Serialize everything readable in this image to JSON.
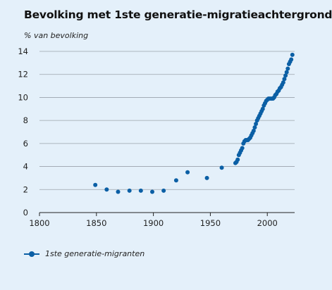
{
  "chart_data": {
    "type": "scatter",
    "title": "Bevolking met 1ste generatie-migratieachtergrond",
    "ylabel": "% van bevolking",
    "xlabel": "",
    "xlim": [
      1800,
      2024
    ],
    "ylim": [
      0,
      14
    ],
    "xticks": [
      1800,
      1850,
      1900,
      1950,
      2000
    ],
    "yticks": [
      0,
      2,
      4,
      6,
      8,
      10,
      12,
      14
    ],
    "grid": "horizontal",
    "legend_position": "bottom-left",
    "series": [
      {
        "name": "1ste generatie-migranten",
        "color": "#0b5fa5",
        "points": [
          [
            1849,
            2.4
          ],
          [
            1859,
            2.0
          ],
          [
            1869,
            1.8
          ],
          [
            1879,
            1.9
          ],
          [
            1889,
            1.9
          ],
          [
            1899,
            1.8
          ],
          [
            1909,
            1.9
          ],
          [
            1920,
            2.8
          ],
          [
            1930,
            3.5
          ],
          [
            1947,
            3.0
          ],
          [
            1960,
            3.9
          ],
          [
            1972,
            4.3
          ],
          [
            1973,
            4.4
          ],
          [
            1974,
            4.6
          ],
          [
            1975,
            5.0
          ],
          [
            1976,
            5.2
          ],
          [
            1977,
            5.4
          ],
          [
            1978,
            5.6
          ],
          [
            1979,
            6.0
          ],
          [
            1980,
            6.2
          ],
          [
            1981,
            6.3
          ],
          [
            1982,
            6.3
          ],
          [
            1983,
            6.3
          ],
          [
            1984,
            6.4
          ],
          [
            1985,
            6.5
          ],
          [
            1986,
            6.7
          ],
          [
            1987,
            6.9
          ],
          [
            1988,
            7.1
          ],
          [
            1989,
            7.4
          ],
          [
            1990,
            7.7
          ],
          [
            1991,
            8.0
          ],
          [
            1992,
            8.2
          ],
          [
            1993,
            8.4
          ],
          [
            1994,
            8.6
          ],
          [
            1995,
            8.8
          ],
          [
            1996,
            9.0
          ],
          [
            1997,
            9.3
          ],
          [
            1998,
            9.5
          ],
          [
            1999,
            9.7
          ],
          [
            2000,
            9.8
          ],
          [
            2001,
            9.9
          ],
          [
            2002,
            9.9
          ],
          [
            2003,
            9.9
          ],
          [
            2004,
            9.9
          ],
          [
            2005,
            9.9
          ],
          [
            2006,
            10.0
          ],
          [
            2007,
            10.2
          ],
          [
            2008,
            10.3
          ],
          [
            2009,
            10.5
          ],
          [
            2010,
            10.6
          ],
          [
            2011,
            10.8
          ],
          [
            2012,
            10.9
          ],
          [
            2013,
            11.1
          ],
          [
            2014,
            11.3
          ],
          [
            2015,
            11.6
          ],
          [
            2016,
            11.9
          ],
          [
            2017,
            12.2
          ],
          [
            2018,
            12.5
          ],
          [
            2019,
            12.9
          ],
          [
            2020,
            13.1
          ],
          [
            2021,
            13.3
          ],
          [
            2022,
            13.7
          ]
        ]
      }
    ]
  }
}
